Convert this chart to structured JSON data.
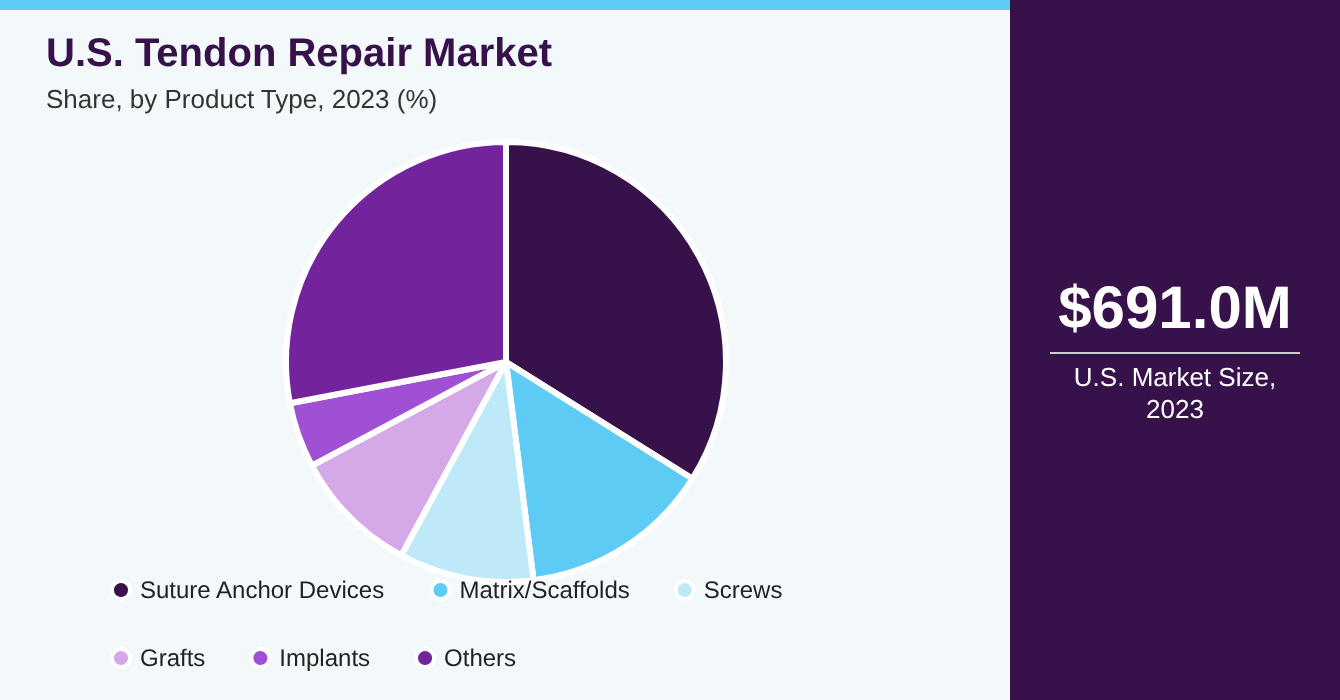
{
  "chart_data": {
    "type": "pie",
    "title": "U.S. Tendon Repair Market",
    "subtitle": "Share, by Product Type, 2023 (%)",
    "categories": [
      "Suture Anchor Devices",
      "Matrix/Scaffolds",
      "Screws",
      "Grafts",
      "Implants",
      "Others"
    ],
    "values": [
      33.9,
      14.1,
      9.9,
      9.3,
      4.8,
      28.0
    ],
    "colors": [
      "#36114a",
      "#5ecbf5",
      "#bde9f8",
      "#d5a8e8",
      "#a050d4",
      "#73239c"
    ],
    "legend": "bottom",
    "annotations": [
      "$691.0M",
      "U.S. Market Size,\n2023"
    ]
  }
}
